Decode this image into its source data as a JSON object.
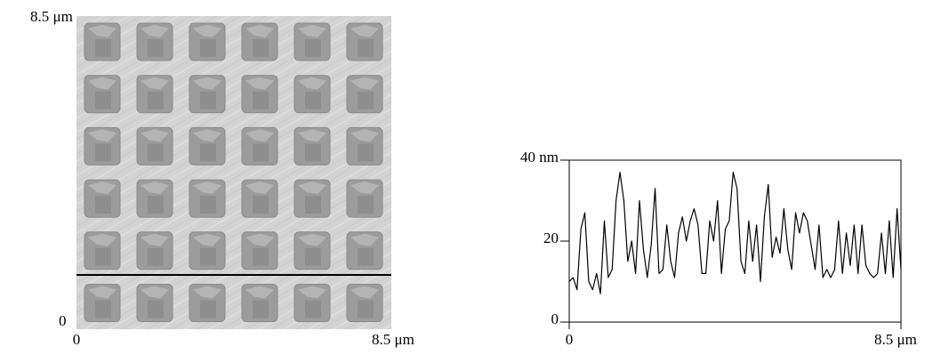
{
  "image": {
    "y_labels": [
      "8.5 μm",
      "0"
    ],
    "x_labels": [
      "0",
      "8.5 μm"
    ]
  },
  "chart_data": {
    "type": "line",
    "x": [
      0,
      0.1,
      0.2,
      0.3,
      0.4,
      0.5,
      0.6,
      0.7,
      0.8,
      0.9,
      1.0,
      1.1,
      1.2,
      1.3,
      1.4,
      1.5,
      1.6,
      1.7,
      1.8,
      1.9,
      2.0,
      2.1,
      2.2,
      2.3,
      2.4,
      2.5,
      2.6,
      2.7,
      2.8,
      2.9,
      3.0,
      3.1,
      3.2,
      3.3,
      3.4,
      3.5,
      3.6,
      3.7,
      3.8,
      3.9,
      4.0,
      4.1,
      4.2,
      4.3,
      4.4,
      4.5,
      4.6,
      4.7,
      4.8,
      4.9,
      5.0,
      5.1,
      5.2,
      5.3,
      5.4,
      5.5,
      5.6,
      5.7,
      5.8,
      5.9,
      6.0,
      6.1,
      6.2,
      6.3,
      6.4,
      6.5,
      6.6,
      6.7,
      6.8,
      6.9,
      7.0,
      7.1,
      7.2,
      7.3,
      7.4,
      7.5,
      7.6,
      7.7,
      7.8,
      7.9,
      8.0,
      8.1,
      8.2,
      8.3,
      8.4,
      8.5
    ],
    "values": [
      10,
      11,
      8,
      23,
      27,
      10,
      8,
      12,
      7,
      25,
      11,
      13,
      30,
      37,
      30,
      15,
      20,
      12,
      30,
      18,
      11,
      19,
      33,
      12,
      13,
      24,
      15,
      11,
      22,
      26,
      20,
      25,
      28,
      24,
      12,
      12,
      25,
      20,
      30,
      12,
      23,
      25,
      37,
      33,
      15,
      12,
      25,
      15,
      24,
      10,
      26,
      34,
      16,
      21,
      17,
      28,
      18,
      13,
      27,
      22,
      27,
      25,
      19,
      13,
      24,
      11,
      13,
      11,
      13,
      25,
      12,
      22,
      14,
      24,
      12,
      24,
      14,
      12,
      11,
      12,
      22,
      12,
      25,
      11,
      28,
      13
    ],
    "color": "#000000",
    "xlim": [
      0,
      8.5
    ],
    "ylim": [
      0,
      40
    ],
    "xticks": [
      0,
      {
        "value": 8.5,
        "label": "8.5 μm"
      }
    ],
    "yticks": [
      0,
      20,
      {
        "value": 40,
        "label": "40 nm"
      }
    ]
  }
}
